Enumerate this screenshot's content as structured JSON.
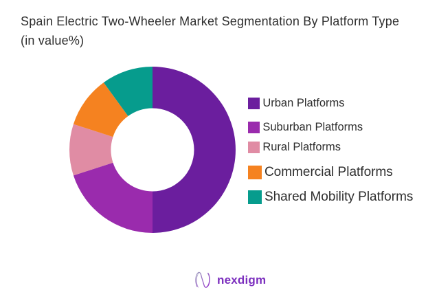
{
  "title": {
    "text": "Spain Electric Two-Wheeler Market Segmentation By Platform Type (in value%)"
  },
  "chart_data": {
    "type": "pie",
    "subtype": "donut",
    "title": "Spain Electric Two-Wheeler Market Segmentation By Platform Type (in value%)",
    "unit": "value %",
    "start_angle_deg": 0,
    "direction": "clockwise",
    "inner_radius_ratio": 0.5,
    "legend_position": "right",
    "segments": [
      {
        "label": "Urban Platforms",
        "value": 50,
        "color": "#6B1E9E"
      },
      {
        "label": "Suburban Platforms",
        "value": 20,
        "color": "#9A2BAD"
      },
      {
        "label": "Rural Platforms",
        "value": 10,
        "color": "#E08CA4"
      },
      {
        "label": "Commercial Platforms",
        "value": 10,
        "color": "#F58220"
      },
      {
        "label": "Shared Mobility Platforms",
        "value": 10,
        "color": "#069C8D"
      }
    ]
  },
  "footer": {
    "brand": "nexdigm",
    "brand_color": "#7B2EBE",
    "logo_gradient_start": "#9A9ABB",
    "logo_gradient_end": "#8E2BC8"
  },
  "colors": {
    "background": "#ffffff",
    "text": "#2e2e2e"
  }
}
